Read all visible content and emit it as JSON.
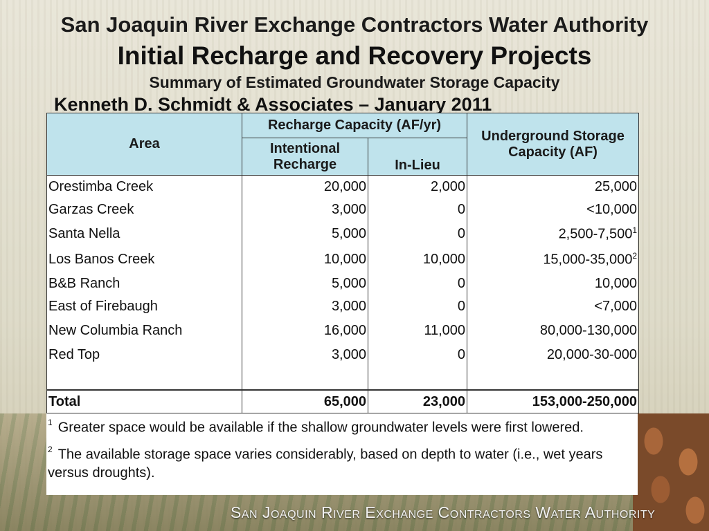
{
  "header": {
    "org_title": "San Joaquin River Exchange Contractors Water Authority",
    "main_title": "Initial Recharge and Recovery Projects",
    "subtitle": "Summary of Estimated Groundwater Storage Capacity",
    "author": "Kenneth D. Schmidt & Associates – January 2011"
  },
  "table": {
    "col_area": "Area",
    "col_recharge_group": "Recharge Capacity (AF/yr)",
    "col_intentional_line1": "Intentional",
    "col_intentional_line2": "Recharge",
    "col_inlieu": "In-Lieu",
    "col_storage_line1": "Underground Storage",
    "col_storage_line2": "Capacity (AF)",
    "rows": [
      {
        "area": "Orestimba Creek",
        "intentional": "20,000",
        "inlieu": "2,000",
        "storage": "25,000",
        "note": ""
      },
      {
        "area": "Garzas Creek",
        "intentional": "3,000",
        "inlieu": "0",
        "storage": "<10,000",
        "note": ""
      },
      {
        "area": "Santa Nella",
        "intentional": "5,000",
        "inlieu": "0",
        "storage": "2,500-7,500",
        "note": "1"
      },
      {
        "area": "Los Banos Creek",
        "intentional": "10,000",
        "inlieu": "10,000",
        "storage": "15,000-35,000",
        "note": "2"
      },
      {
        "area": "B&B Ranch",
        "intentional": "5,000",
        "inlieu": "0",
        "storage": "10,000",
        "note": ""
      },
      {
        "area": "East of Firebaugh",
        "intentional": "3,000",
        "inlieu": "0",
        "storage": "<7,000",
        "note": ""
      },
      {
        "area": "New Columbia Ranch",
        "intentional": "16,000",
        "inlieu": "11,000",
        "storage": "80,000-130,000",
        "note": ""
      },
      {
        "area": "Red Top",
        "intentional": "3,000",
        "inlieu": "0",
        "storage": "20,000-30-000",
        "note": ""
      }
    ],
    "total": {
      "area": "Total",
      "intentional": "65,000",
      "inlieu": "23,000",
      "storage": "153,000-250,000"
    }
  },
  "notes": [
    {
      "mark": "1",
      "text": "Greater space would be available if the shallow groundwater levels were first lowered."
    },
    {
      "mark": "2",
      "text": "The available storage space varies considerably, based on depth to water (i.e., wet years versus droughts)."
    }
  ],
  "footer": {
    "banner": "San Joaquin River Exchange Contractors Water Authority"
  }
}
